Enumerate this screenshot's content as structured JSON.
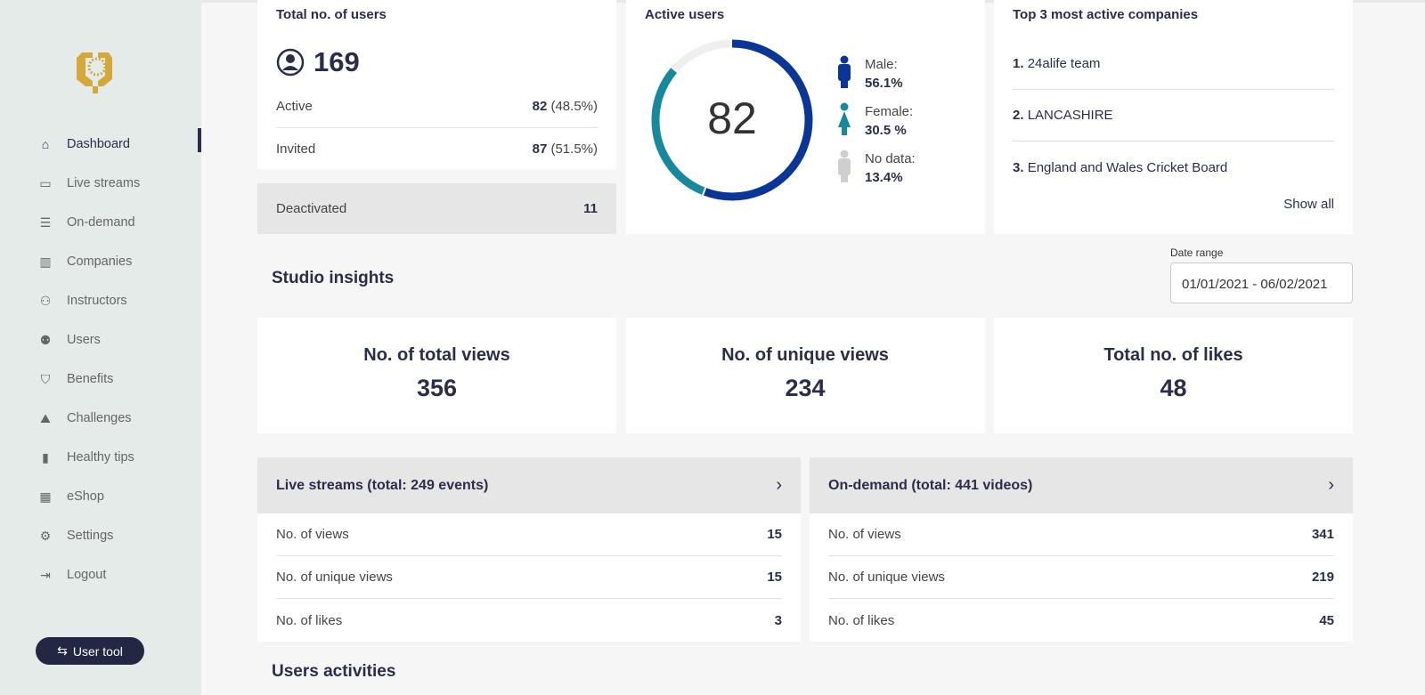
{
  "sidebar": {
    "items": [
      {
        "label": "Dashboard",
        "icon": "home-icon",
        "glyph": "⌂"
      },
      {
        "label": "Live streams",
        "icon": "video-icon",
        "glyph": "▭"
      },
      {
        "label": "On-demand",
        "icon": "list-icon",
        "glyph": "☰"
      },
      {
        "label": "Companies",
        "icon": "building-icon",
        "glyph": "▥"
      },
      {
        "label": "Instructors",
        "icon": "users-icon",
        "glyph": "⚇"
      },
      {
        "label": "Users",
        "icon": "group-icon",
        "glyph": "⚉"
      },
      {
        "label": "Benefits",
        "icon": "bookmark-icon",
        "glyph": "⛉"
      },
      {
        "label": "Challenges",
        "icon": "mountain-flag-icon",
        "glyph": "⛰"
      },
      {
        "label": "Healthy tips",
        "icon": "books-icon",
        "glyph": "▮"
      },
      {
        "label": "eShop",
        "icon": "shop-icon",
        "glyph": "▦"
      },
      {
        "label": "Settings",
        "icon": "gear-icon",
        "glyph": "⚙"
      },
      {
        "label": "Logout",
        "icon": "logout-icon",
        "glyph": "⇥"
      }
    ],
    "user_tool": "User tool",
    "user_tool_icon": "⇆"
  },
  "users": {
    "title": "Total no. of users",
    "total": "169",
    "active_label": "Active",
    "active_value": "82",
    "active_pct": "(48.5%)",
    "invited_label": "Invited",
    "invited_value": "87",
    "invited_pct": "(51.5%)",
    "deactivated_label": "Deactivated",
    "deactivated_value": "11"
  },
  "active_users": {
    "title": "Active users",
    "count": "82",
    "segments": [
      {
        "label": "Male:",
        "value": "56.1%",
        "pct": 56.1,
        "color": "#0a3697"
      },
      {
        "label": "Female:",
        "value": "30.5 %",
        "pct": 30.5,
        "color": "#17899e"
      },
      {
        "label": "No data:",
        "value": "13.4%",
        "pct": 13.4,
        "color": "#efefef"
      }
    ]
  },
  "companies": {
    "title": "Top 3 most active companies",
    "items": [
      {
        "rank": "1.",
        "name": "24alife team"
      },
      {
        "rank": "2.",
        "name": "LANCASHIRE"
      },
      {
        "rank": "3.",
        "name": "England and Wales Cricket Board"
      }
    ],
    "show_all": "Show all"
  },
  "studio": {
    "title": "Studio insights",
    "date_label": "Date range",
    "date_value": "01/01/2021 - 06/02/2021",
    "stats": [
      {
        "label": "No. of total views",
        "value": "356"
      },
      {
        "label": "No. of unique views",
        "value": "234"
      },
      {
        "label": "Total no. of likes",
        "value": "48"
      }
    ]
  },
  "live": {
    "title": "Live streams (total: 249 events)",
    "rows": [
      {
        "label": "No. of views",
        "value": "15"
      },
      {
        "label": "No. of unique views",
        "value": "15"
      },
      {
        "label": "No. of likes",
        "value": "3"
      }
    ]
  },
  "ondemand": {
    "title": "On-demand (total: 441 videos)",
    "rows": [
      {
        "label": "No. of views",
        "value": "341"
      },
      {
        "label": "No. of unique views",
        "value": "219"
      },
      {
        "label": "No. of likes",
        "value": "45"
      }
    ]
  },
  "activities": {
    "title": "Users activities"
  }
}
